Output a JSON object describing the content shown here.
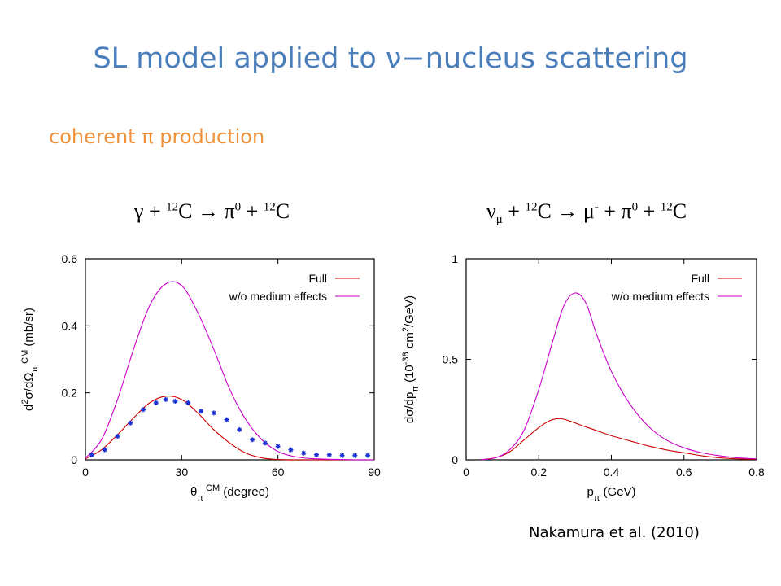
{
  "slide": {
    "title": "SL model applied to ν−nucleus scattering",
    "subtitle": "coherent π production",
    "citation": "Nakamura et al. (2010)"
  },
  "reactions": {
    "left": {
      "part1": "γ + ",
      "sup1": "12",
      "part2": "C  →  π",
      "sup2": "0",
      "part3": " + ",
      "sup3": "12",
      "part4": "C"
    },
    "right": {
      "part1": "ν",
      "sub1": "μ",
      "part2": " + ",
      "sup1": "12",
      "part3": "C  →  μ",
      "sup2": "-",
      "part4": " + π",
      "sup3": "0",
      "part5": " + ",
      "sup4": "12",
      "part6": "C"
    }
  },
  "colors": {
    "title": "#4a7ebb",
    "subtitle": "#f0923b",
    "full": "#cc0000",
    "wo": "#cc00cc",
    "data": "#1a2fd1"
  },
  "chart_data": [
    {
      "type": "line",
      "xlabel_main": "θ",
      "xlabel_sub": "π",
      "xlabel_sup": "CM",
      "xlabel_tail": " (degree)",
      "ylabel_pre": "d",
      "ylabel_sup": "2",
      "ylabel_mid": "σ/dΩ",
      "ylabel_sub": "π",
      "ylabel_sup2": "CM",
      "ylabel_tail": " (mb/sr)",
      "xlim": [
        0,
        90
      ],
      "ylim": [
        0,
        0.6
      ],
      "xticks": [
        0,
        30,
        60,
        90
      ],
      "xtick_labels": [
        "0",
        "30",
        "60",
        "90"
      ],
      "yticks": [
        0,
        0.2,
        0.4,
        0.6
      ],
      "ytick_labels": [
        "0",
        "0.2",
        "0.4",
        "0.6"
      ],
      "series": [
        {
          "name": "Full",
          "kind": "line",
          "color": "#cc0000",
          "x": [
            0,
            5,
            10,
            15,
            20,
            25,
            30,
            35,
            40,
            45,
            50,
            55,
            60,
            65,
            70,
            75,
            80,
            85,
            90
          ],
          "y": [
            0.003,
            0.03,
            0.075,
            0.125,
            0.17,
            0.19,
            0.18,
            0.14,
            0.09,
            0.05,
            0.02,
            0.006,
            0.001,
            0,
            0,
            0,
            0,
            0,
            0
          ]
        },
        {
          "name": "w/o medium effects",
          "kind": "line",
          "color": "#cc00cc",
          "x": [
            0,
            5,
            10,
            15,
            20,
            25,
            30,
            35,
            40,
            45,
            50,
            55,
            60,
            65,
            70,
            75,
            80,
            85,
            90
          ],
          "y": [
            0.005,
            0.06,
            0.18,
            0.33,
            0.46,
            0.525,
            0.52,
            0.44,
            0.33,
            0.21,
            0.12,
            0.06,
            0.025,
            0.01,
            0.004,
            0.002,
            0.001,
            0,
            0
          ]
        },
        {
          "name": "data",
          "kind": "points",
          "color": "#1a2fd1",
          "x": [
            2,
            6,
            10,
            14,
            18,
            22,
            25,
            28,
            32,
            36,
            40,
            44,
            48,
            52,
            56,
            60,
            64,
            68,
            72,
            76,
            80,
            84,
            88
          ],
          "y": [
            0.015,
            0.03,
            0.07,
            0.11,
            0.15,
            0.17,
            0.18,
            0.175,
            0.17,
            0.145,
            0.14,
            0.12,
            0.09,
            0.06,
            0.05,
            0.04,
            0.03,
            0.02,
            0.015,
            0.015,
            0.013,
            0.013,
            0.013
          ]
        }
      ],
      "legend": [
        "Full",
        "w/o medium effects"
      ]
    },
    {
      "type": "line",
      "xlabel_main": "p",
      "xlabel_sub": "π",
      "xlabel_tail": " (GeV)",
      "ylabel_pre": "dσ/dp",
      "ylabel_sub": "π",
      "ylabel_mid": "  (10",
      "ylabel_sup": "-38",
      "ylabel_mid2": " cm",
      "ylabel_sup2": "2",
      "ylabel_tail": "/GeV)",
      "xlim": [
        0,
        0.8
      ],
      "ylim": [
        0,
        1
      ],
      "xticks": [
        0,
        0.2,
        0.4,
        0.6,
        0.8
      ],
      "xtick_labels": [
        "0",
        "0.2",
        "0.4",
        "0.6",
        "0.8"
      ],
      "yticks": [
        0,
        0.5,
        1
      ],
      "ytick_labels": [
        "0",
        "0.5",
        "1"
      ],
      "series": [
        {
          "name": "Full",
          "kind": "line",
          "color": "#cc0000",
          "x": [
            0.04,
            0.08,
            0.12,
            0.16,
            0.2,
            0.23,
            0.26,
            0.29,
            0.32,
            0.36,
            0.4,
            0.45,
            0.5,
            0.55,
            0.6,
            0.65,
            0.7,
            0.75,
            0.8
          ],
          "y": [
            0.001,
            0.01,
            0.04,
            0.1,
            0.16,
            0.195,
            0.205,
            0.19,
            0.17,
            0.145,
            0.12,
            0.095,
            0.07,
            0.05,
            0.035,
            0.02,
            0.01,
            0.005,
            0.003
          ]
        },
        {
          "name": "w/o medium effects",
          "kind": "line",
          "color": "#cc00cc",
          "x": [
            0.04,
            0.08,
            0.12,
            0.16,
            0.2,
            0.24,
            0.27,
            0.3,
            0.33,
            0.36,
            0.4,
            0.45,
            0.5,
            0.55,
            0.6,
            0.65,
            0.7,
            0.75,
            0.8
          ],
          "y": [
            0.001,
            0.01,
            0.05,
            0.15,
            0.35,
            0.6,
            0.77,
            0.83,
            0.78,
            0.62,
            0.44,
            0.28,
            0.17,
            0.1,
            0.06,
            0.035,
            0.02,
            0.01,
            0.005
          ]
        }
      ],
      "legend": [
        "Full",
        "w/o medium effects"
      ]
    }
  ]
}
